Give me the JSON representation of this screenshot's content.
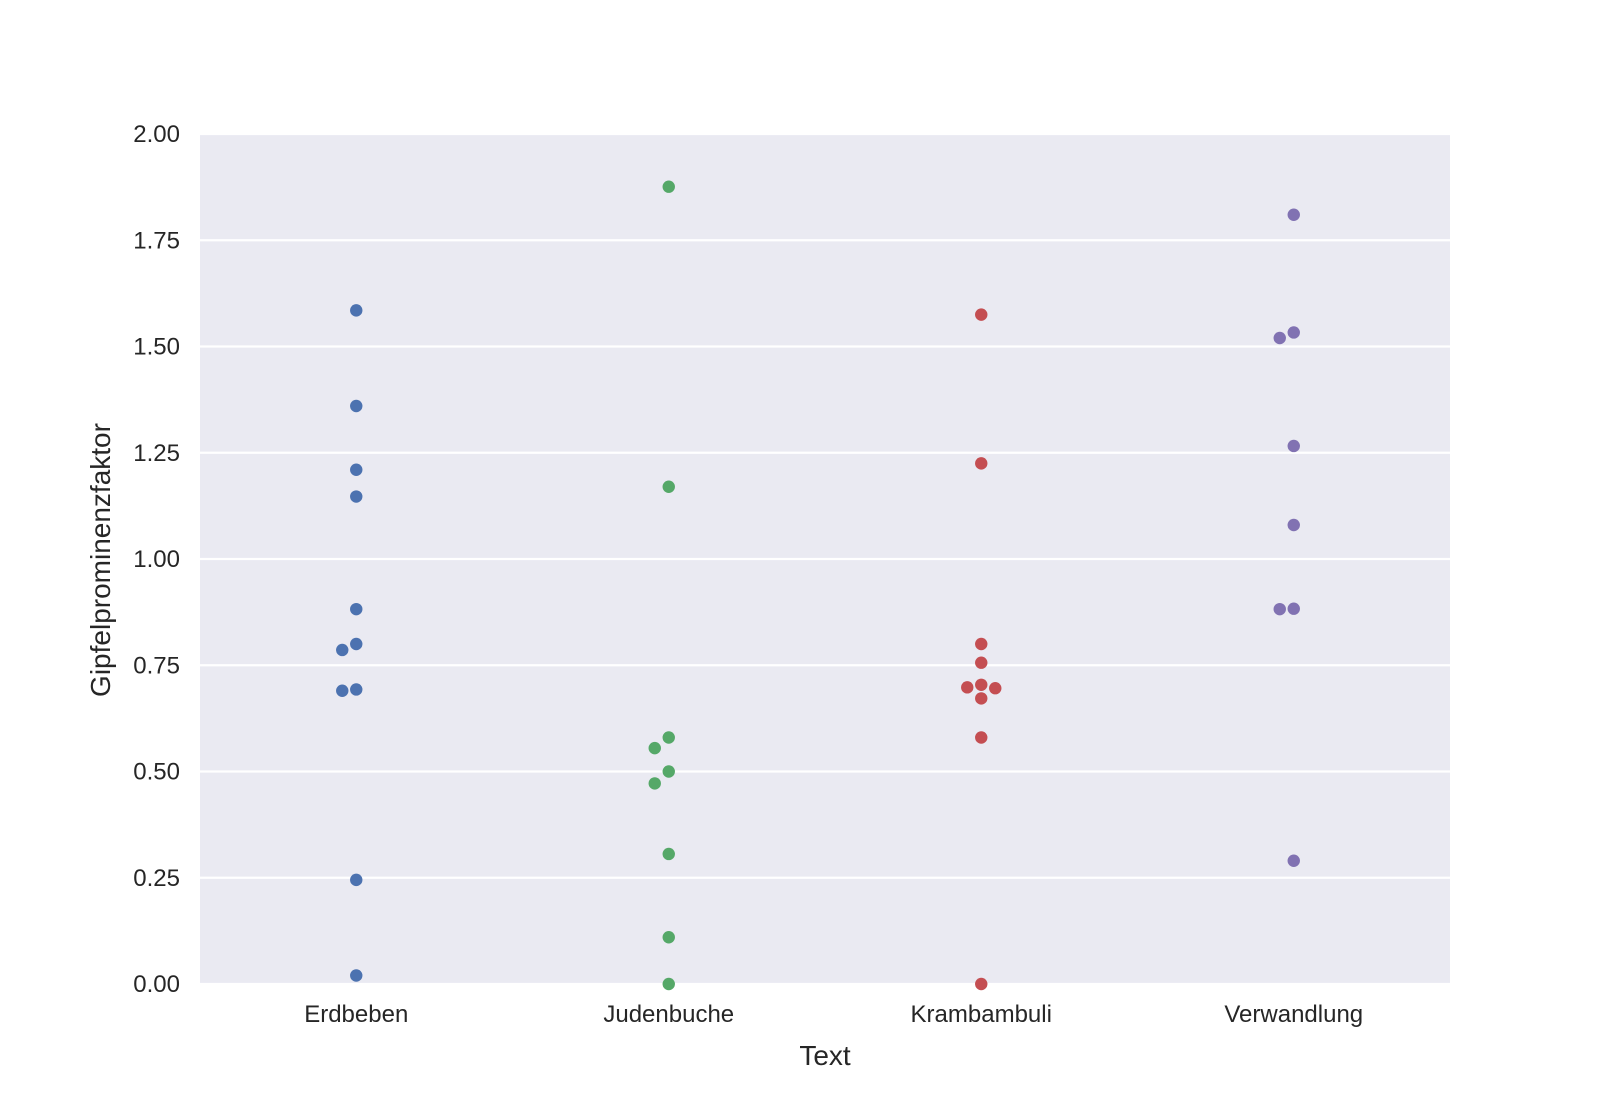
{
  "chart_data": {
    "type": "scatter",
    "subtype": "swarm",
    "xlabel": "Text",
    "ylabel": "Gipfelprominenzfaktor",
    "ylim": [
      0,
      2
    ],
    "yticks": [
      "0.00",
      "0.25",
      "0.50",
      "0.75",
      "1.00",
      "1.25",
      "1.50",
      "1.75",
      "2.00"
    ],
    "categories": [
      "Erdbeben",
      "Judenbuche",
      "Krambambuli",
      "Verwandlung"
    ],
    "grid": true,
    "background": "#eaeaf2",
    "colors": [
      "#4c72b0",
      "#55a868",
      "#c44e52",
      "#8172b2"
    ],
    "series": [
      {
        "category": "Erdbeben",
        "values": [
          1.585,
          1.36,
          1.21,
          1.147,
          0.882,
          0.8,
          0.786,
          0.693,
          0.69,
          0.245,
          0.02
        ]
      },
      {
        "category": "Judenbuche",
        "values": [
          1.876,
          1.17,
          0.58,
          0.555,
          0.5,
          0.472,
          0.306,
          0.11,
          0.0
        ]
      },
      {
        "category": "Krambambuli",
        "values": [
          1.575,
          1.225,
          0.8,
          0.756,
          0.704,
          0.698,
          0.696,
          0.672,
          0.58,
          0.0
        ]
      },
      {
        "category": "Verwandlung",
        "values": [
          1.81,
          1.533,
          1.52,
          1.266,
          1.08,
          0.883,
          0.882,
          0.29
        ]
      }
    ]
  }
}
